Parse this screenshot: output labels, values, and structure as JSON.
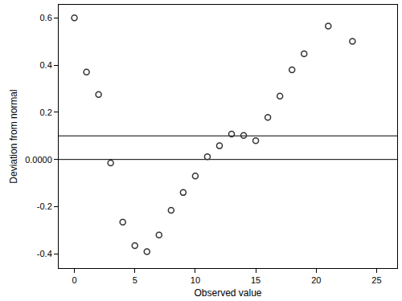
{
  "chart_data": {
    "type": "scatter",
    "x_label": "Observed value",
    "y_label": "Deviation from normal",
    "x": [
      0,
      1,
      2,
      3,
      4,
      5,
      6,
      7,
      8,
      9,
      10,
      11,
      12,
      13,
      14,
      15,
      16,
      17,
      18,
      19,
      21,
      23
    ],
    "values": [
      0.6,
      0.37,
      0.275,
      -0.015,
      -0.265,
      -0.365,
      -0.39,
      -0.32,
      -0.215,
      -0.14,
      -0.07,
      0.012,
      0.058,
      0.108,
      0.102,
      0.08,
      0.178,
      0.268,
      0.38,
      0.448,
      0.565,
      0.5
    ],
    "color": "#333333",
    "marker": "open circle",
    "reference_lines": [
      0,
      0.1
    ],
    "xlim": [
      -1.3,
      26.7
    ],
    "xticks": [
      0,
      5,
      10,
      15,
      20,
      25
    ],
    "ylim": [
      -0.46,
      0.655
    ],
    "yticks": [
      -0.4,
      -0.2,
      {
        "value": 0,
        "label": "0.0000"
      },
      0.2,
      0.4,
      0.6
    ],
    "grid": false
  }
}
